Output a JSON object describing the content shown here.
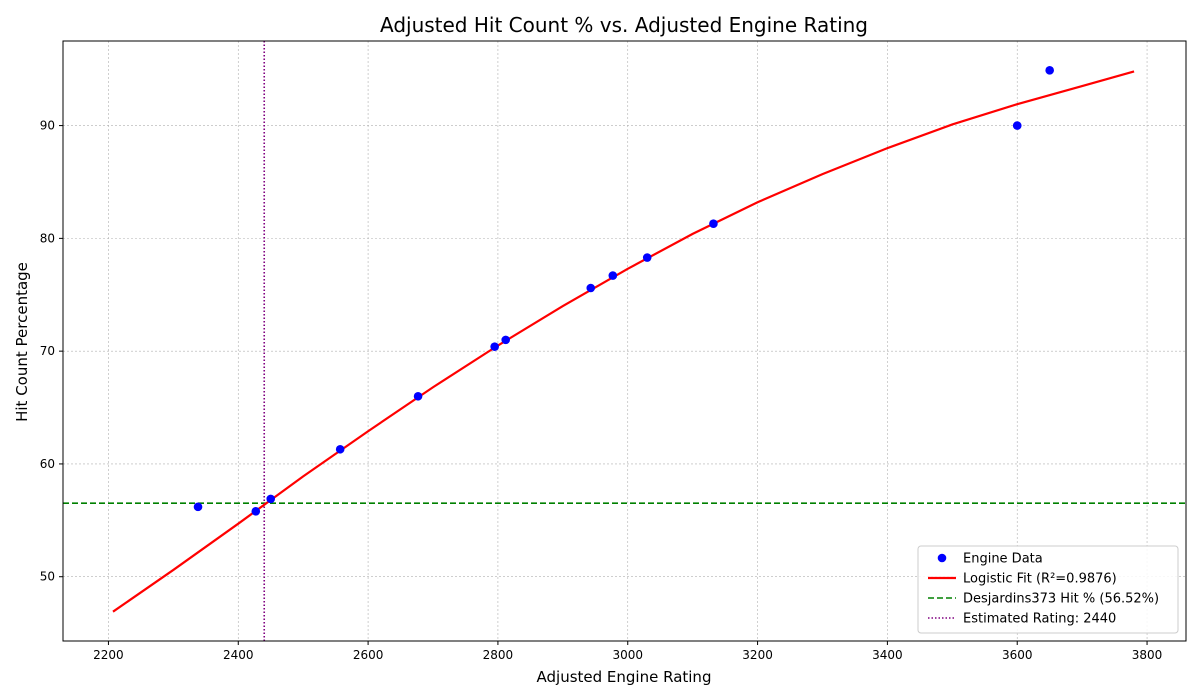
{
  "chart_data": {
    "type": "scatter",
    "title": "Adjusted Hit Count % vs. Adjusted Engine Rating",
    "xlabel": "Adjusted Engine Rating",
    "ylabel": "Hit Count Percentage",
    "xlim": [
      2130,
      3860
    ],
    "ylim": [
      44.3,
      97.5
    ],
    "xticks": [
      2200,
      2400,
      2600,
      2800,
      3000,
      3200,
      3400,
      3600,
      3800
    ],
    "yticks": [
      50,
      60,
      70,
      80,
      90
    ],
    "grid": true,
    "legend_position": "lower right",
    "series": [
      {
        "name": "Engine Data",
        "kind": "scatter",
        "color": "#0000ff",
        "points": [
          {
            "x": 2338,
            "y": 56.2
          },
          {
            "x": 2427,
            "y": 55.8
          },
          {
            "x": 2450,
            "y": 56.9
          },
          {
            "x": 2557,
            "y": 61.3
          },
          {
            "x": 2677,
            "y": 66.0
          },
          {
            "x": 2795,
            "y": 70.4
          },
          {
            "x": 2812,
            "y": 71.0
          },
          {
            "x": 2943,
            "y": 75.6
          },
          {
            "x": 2977,
            "y": 76.7
          },
          {
            "x": 3030,
            "y": 78.3
          },
          {
            "x": 3132,
            "y": 81.3
          },
          {
            "x": 3600,
            "y": 90.0
          },
          {
            "x": 3650,
            "y": 94.9
          }
        ]
      },
      {
        "name": "Logistic Fit (R²=0.9876)",
        "kind": "line",
        "color": "#ff0000",
        "points": [
          {
            "x": 2207,
            "y": 46.9
          },
          {
            "x": 2300,
            "y": 50.6
          },
          {
            "x": 2400,
            "y": 54.7
          },
          {
            "x": 2500,
            "y": 58.9
          },
          {
            "x": 2600,
            "y": 62.9
          },
          {
            "x": 2700,
            "y": 66.8
          },
          {
            "x": 2800,
            "y": 70.5
          },
          {
            "x": 2900,
            "y": 74.0
          },
          {
            "x": 3000,
            "y": 77.3
          },
          {
            "x": 3100,
            "y": 80.4
          },
          {
            "x": 3200,
            "y": 83.2
          },
          {
            "x": 3300,
            "y": 85.7
          },
          {
            "x": 3400,
            "y": 88.0
          },
          {
            "x": 3500,
            "y": 90.1
          },
          {
            "x": 3600,
            "y": 91.9
          },
          {
            "x": 3700,
            "y": 93.5
          },
          {
            "x": 3780,
            "y": 94.8
          }
        ]
      },
      {
        "name": "Desjardins373 Hit % (56.52%)",
        "kind": "hline",
        "color": "#008000",
        "y": 56.52
      },
      {
        "name": "Estimated Rating: 2440",
        "kind": "vline",
        "color": "#800080",
        "x": 2440
      }
    ]
  }
}
